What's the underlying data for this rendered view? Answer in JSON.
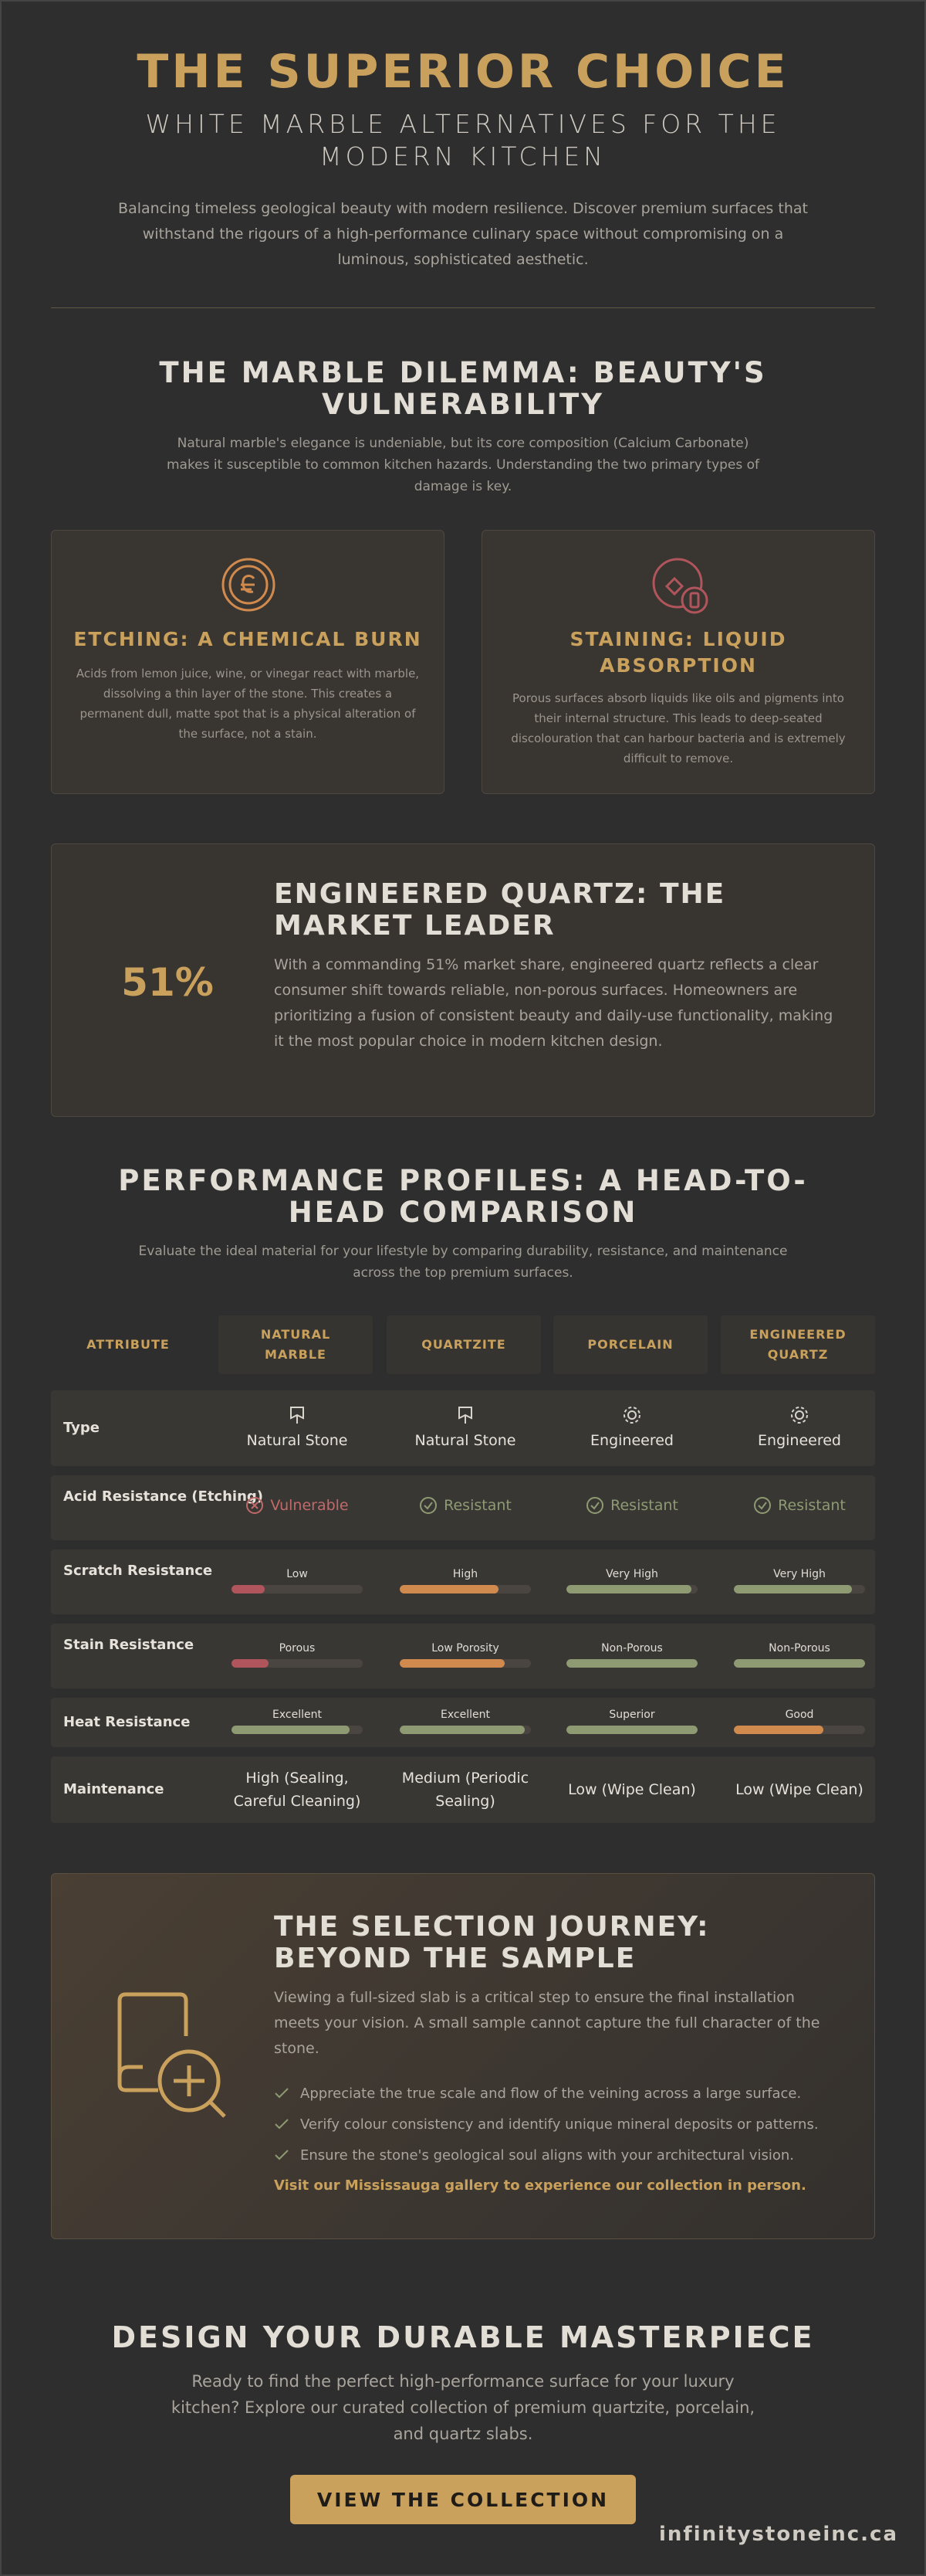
{
  "hero": {
    "title": "THE SUPERIOR CHOICE",
    "subtitle": "WHITE MARBLE ALTERNATIVES FOR THE MODERN KITCHEN",
    "text": "Balancing timeless geological beauty with modern resilience. Discover premium surfaces that withstand the rigours of a high-performance culinary space without compromising on a luminous, sophisticated aesthetic."
  },
  "dilemma": {
    "title": "THE MARBLE DILEMMA: BEAUTY'S VULNERABILITY",
    "text": "Natural marble's elegance is undeniable, but its core composition (Calcium Carbonate) makes it susceptible to common kitchen hazards. Understanding the two primary types of damage is key.",
    "cards": [
      {
        "icon": "etching-icon",
        "title": "ETCHING: A CHEMICAL BURN",
        "text": "Acids from lemon juice, wine, or vinegar react with marble, dissolving a thin layer of the stone. This creates a permanent dull, matte spot that is a physical alteration of the surface, not a stain."
      },
      {
        "icon": "staining-icon",
        "title": "STAINING: LIQUID ABSORPTION",
        "text": "Porous surfaces absorb liquids like oils and pigments into their internal structure. This leads to deep-seated discolouration that can harbour bacteria and is extremely difficult to remove."
      }
    ]
  },
  "quartz": {
    "stat": "51%",
    "title": "ENGINEERED QUARTZ: THE MARKET LEADER",
    "text": "With a commanding 51% market share, engineered quartz reflects a clear consumer shift towards reliable, non-porous surfaces. Homeowners are prioritizing a fusion of consistent beauty and daily-use functionality, making it the most popular choice in modern kitchen design."
  },
  "comparison": {
    "title": "PERFORMANCE PROFILES: A HEAD-TO-HEAD COMPARISON",
    "text": "Evaluate the ideal material for your lifestyle by comparing durability, resistance, and maintenance across the top premium surfaces.",
    "headers": [
      "ATTRIBUTE",
      "NATURAL MARBLE",
      "QUARTZITE",
      "PORCELAIN",
      "ENGINEERED QUARTZ"
    ],
    "type": {
      "label": "Type",
      "values": [
        "Natural Stone",
        "Natural Stone",
        "Engineered",
        "Engineered"
      ]
    },
    "acid": {
      "label": "Acid Resistance (Etching)",
      "values": [
        "Vulnerable",
        "Resistant",
        "Resistant",
        "Resistant"
      ]
    },
    "scratch": {
      "label": "Scratch Resistance",
      "values": [
        "Low",
        "High",
        "Very High",
        "Very High"
      ],
      "levels": [
        0.25,
        0.75,
        0.95,
        0.9
      ]
    },
    "stain": {
      "label": "Stain Resistance",
      "values": [
        "Porous",
        "Low Porosity",
        "Non-Porous",
        "Non-Porous"
      ],
      "levels": [
        0.28,
        0.8,
        1.0,
        1.0
      ]
    },
    "heat": {
      "label": "Heat Resistance",
      "values": [
        "Excellent",
        "Excellent",
        "Superior",
        "Good"
      ],
      "levels": [
        0.9,
        0.95,
        1.0,
        0.68
      ]
    },
    "maintenance": {
      "label": "Maintenance",
      "values": [
        "High (Sealing, Careful Cleaning)",
        "Medium (Periodic Sealing)",
        "Low (Wipe Clean)",
        "Low (Wipe Clean)"
      ]
    },
    "colors": {
      "low": "#b0555b",
      "mid": "#d08a4e",
      "high": "#8e9a72"
    }
  },
  "journey": {
    "title": "THE SELECTION JOURNEY: BEYOND THE SAMPLE",
    "text": "Viewing a full-sized slab is a critical step to ensure the final installation meets your vision. A small sample cannot capture the full character of the stone.",
    "items": [
      "Appreciate the true scale and flow of the veining across a large surface.",
      "Verify colour consistency and identify unique mineral deposits or patterns.",
      "Ensure the stone's geological soul aligns with your architectural vision."
    ],
    "cta": "Visit our Mississauga gallery to experience our collection in person."
  },
  "final": {
    "title": "DESIGN YOUR DURABLE MASTERPIECE",
    "text": "Ready to find the perfect high-performance surface for your luxury kitchen? Explore our curated collection of premium quartzite, porcelain, and quartz slabs.",
    "button": "VIEW THE COLLECTION",
    "site": "infinitystoneinc.ca"
  }
}
